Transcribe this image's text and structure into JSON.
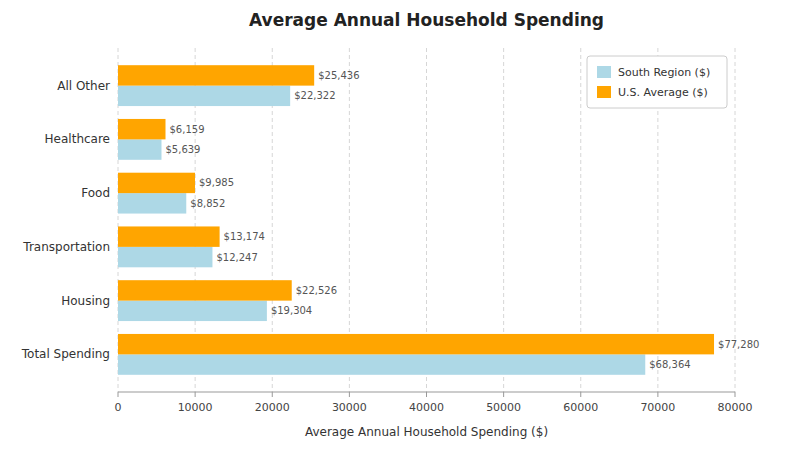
{
  "chart_data": {
    "type": "bar",
    "orientation": "horizontal",
    "title": "Average Annual Household Spending",
    "xlabel": "Average Annual Household Spending ($)",
    "categories": [
      "Total Spending",
      "Housing",
      "Transportation",
      "Food",
      "Healthcare",
      "All Other"
    ],
    "series": [
      {
        "name": "South Region ($)",
        "color": "#add8e6",
        "values": [
          68364,
          19304,
          12247,
          8852,
          5639,
          22322
        ],
        "value_labels": [
          "$68,364",
          "$19,304",
          "$12,247",
          "$8,852",
          "$5,639",
          "$22,322"
        ]
      },
      {
        "name": "U.S. Average ($)",
        "color": "#FFA500",
        "values": [
          77280,
          22526,
          13174,
          9985,
          6159,
          25436
        ],
        "value_labels": [
          "$77,280",
          "$22,526",
          "$13,174",
          "$9,985",
          "$6,159",
          "$25,436"
        ]
      }
    ],
    "xlim": [
      0,
      80000
    ],
    "xticks": [
      0,
      10000,
      20000,
      30000,
      40000,
      50000,
      60000,
      70000,
      80000
    ],
    "grid": true,
    "legend": "upper right",
    "data_labels": true
  }
}
